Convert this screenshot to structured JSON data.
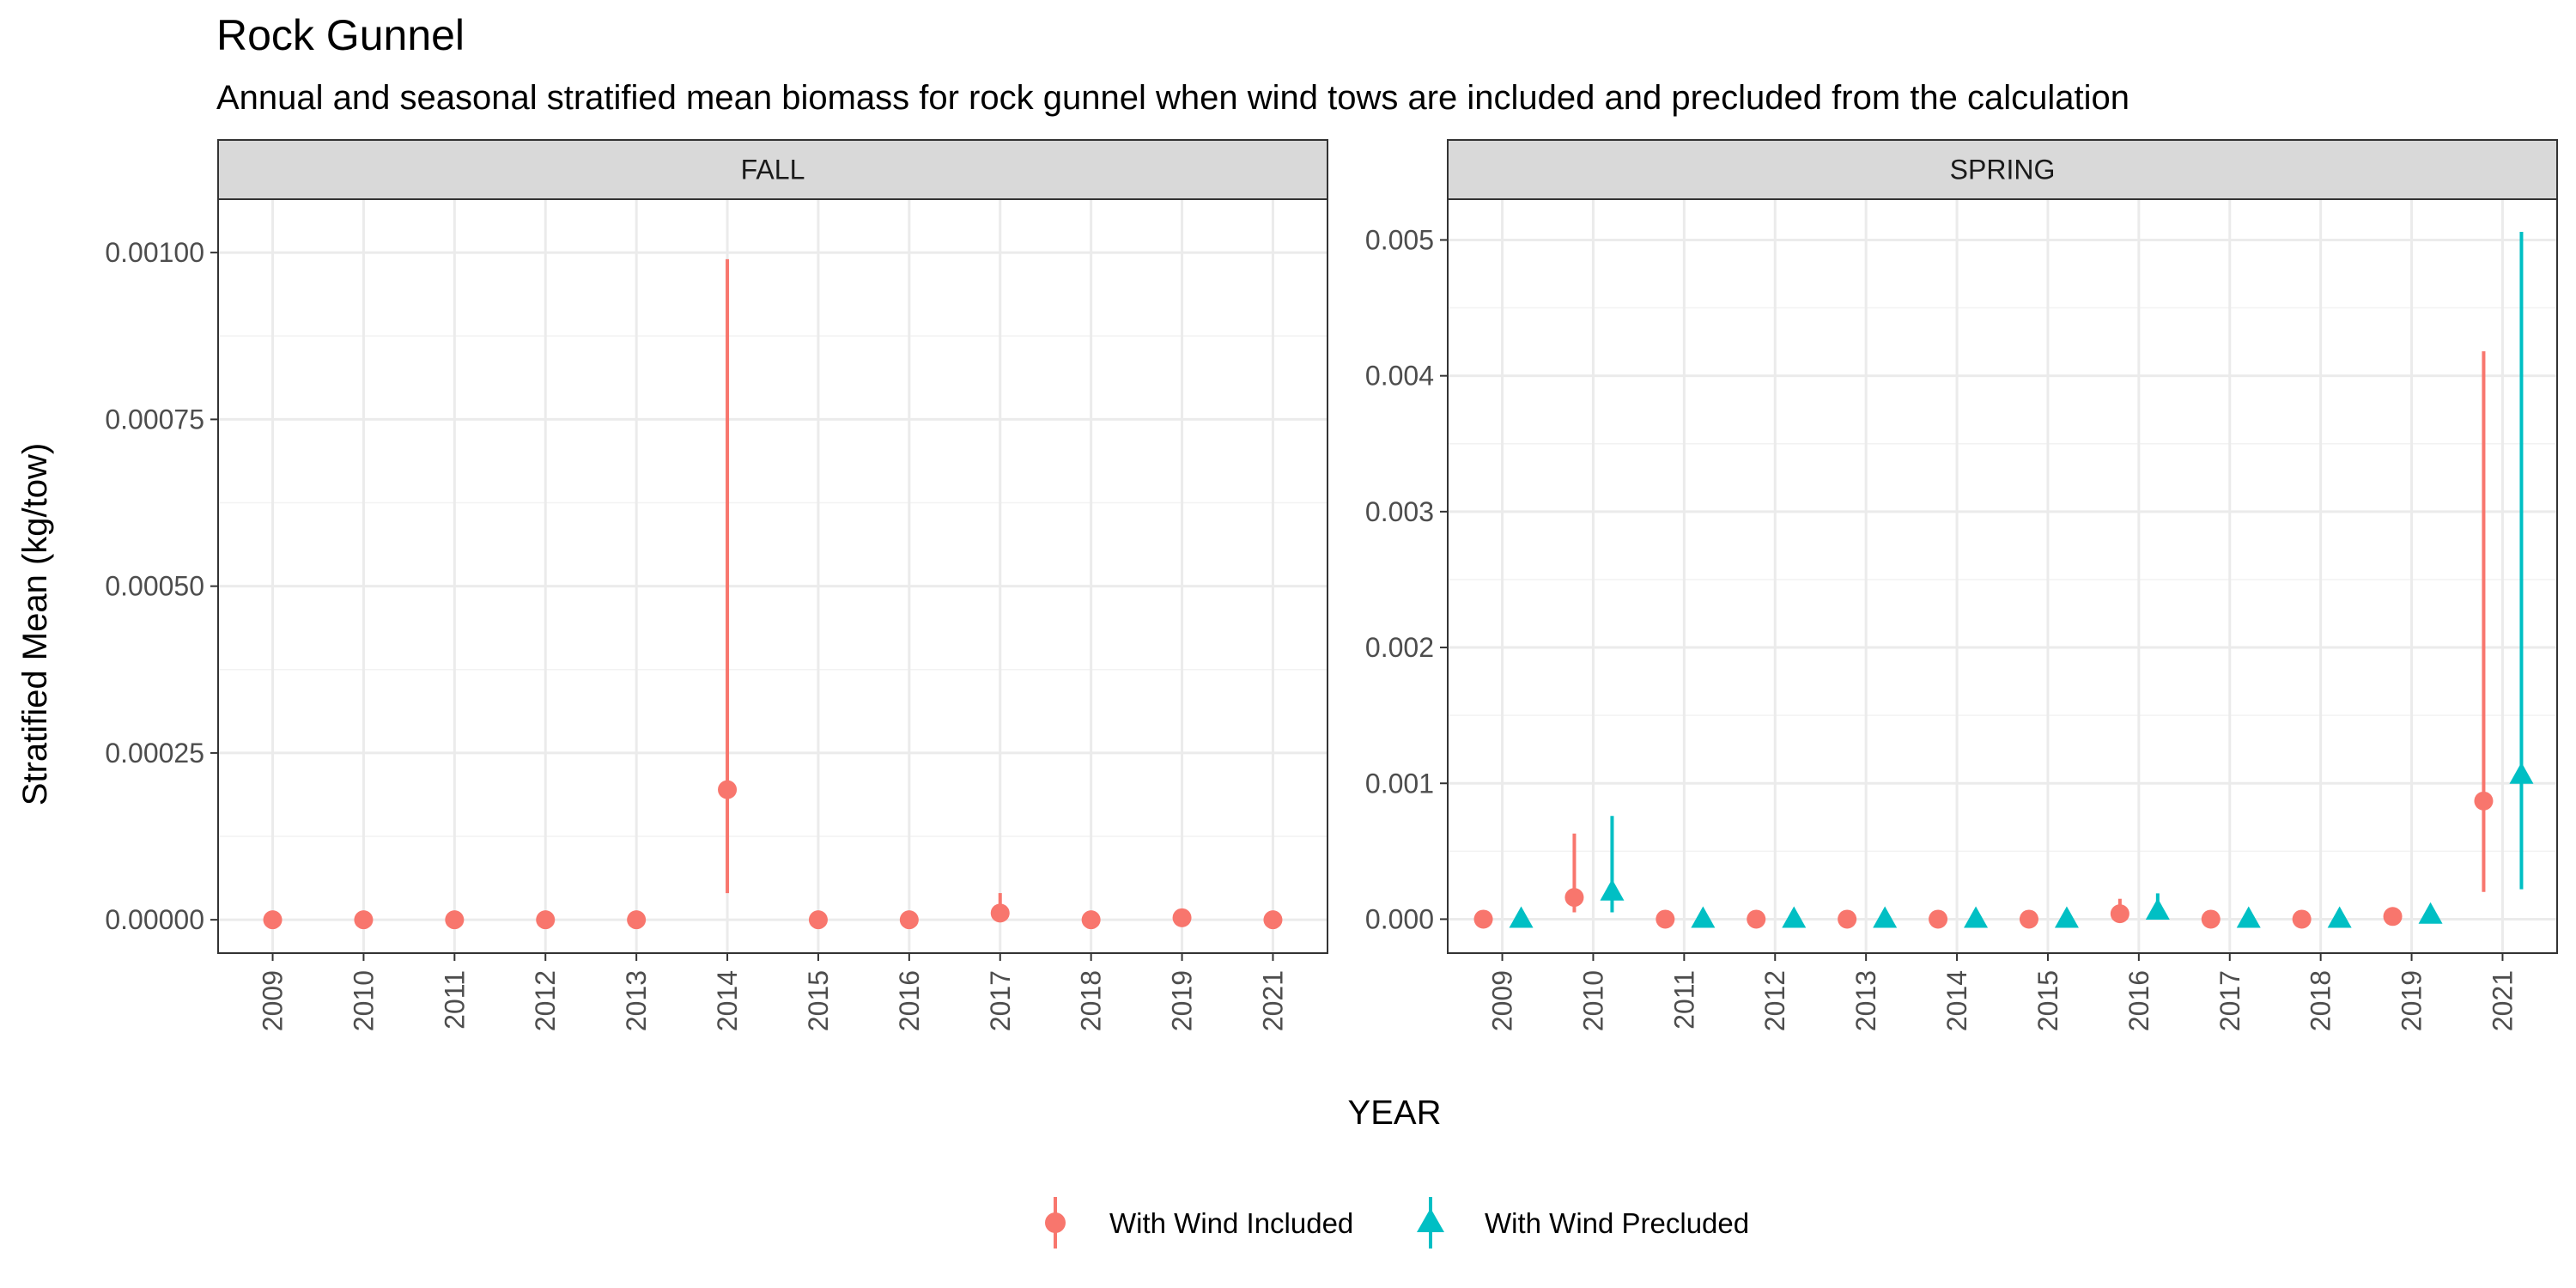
{
  "title": "Rock Gunnel",
  "subtitle": "Annual and seasonal stratified mean biomass for rock gunnel when wind tows are included and precluded from the calculation",
  "colors": {
    "included": "#F8766D",
    "precluded": "#00BFC4",
    "grid": "#EBEBEB",
    "strip_bg": "#D9D9D9",
    "panel_border": "#333333"
  },
  "legend": {
    "items": [
      {
        "label": "With Wind Included",
        "shape": "circle",
        "color": "#F8766D"
      },
      {
        "label": "With Wind Precluded",
        "shape": "triangle",
        "color": "#00BFC4"
      }
    ]
  },
  "chart_data": [
    {
      "type": "scatter",
      "panel": "FALL",
      "xlabel": "YEAR",
      "ylabel": "Stratified Mean (kg/tow)",
      "ylim": [
        -5e-05,
        0.00108
      ],
      "yticks": [
        0.0,
        0.00025,
        0.0005,
        0.00075,
        0.001
      ],
      "ytick_labels": [
        "0.00000",
        "0.00025",
        "0.00050",
        "0.00075",
        "0.00100"
      ],
      "categories": [
        "2009",
        "2010",
        "2011",
        "2012",
        "2013",
        "2014",
        "2015",
        "2016",
        "2017",
        "2018",
        "2019",
        "2021"
      ],
      "series": [
        {
          "name": "With Wind Included",
          "values": [
            0,
            0,
            0,
            0,
            0,
            0.000195,
            0,
            0,
            1e-05,
            0,
            3e-06,
            0
          ],
          "lower": [
            0,
            0,
            0,
            0,
            0,
            4e-05,
            0,
            0,
            1e-06,
            0,
            0,
            0
          ],
          "upper": [
            0,
            0,
            0,
            0,
            0,
            0.00099,
            0,
            0,
            4e-05,
            0,
            5e-06,
            0
          ]
        }
      ]
    },
    {
      "type": "scatter",
      "panel": "SPRING",
      "xlabel": "YEAR",
      "ylabel": "Stratified Mean (kg/tow)",
      "ylim": [
        -0.00025,
        0.0053
      ],
      "yticks": [
        0.0,
        0.001,
        0.002,
        0.003,
        0.004,
        0.005
      ],
      "ytick_labels": [
        "0.000",
        "0.001",
        "0.002",
        "0.003",
        "0.004",
        "0.005"
      ],
      "categories": [
        "2009",
        "2010",
        "2011",
        "2012",
        "2013",
        "2014",
        "2015",
        "2016",
        "2017",
        "2018",
        "2019",
        "2021"
      ],
      "series": [
        {
          "name": "With Wind Included",
          "values": [
            0,
            0.00016,
            0,
            0,
            0,
            0,
            0,
            4e-05,
            0,
            0,
            2e-05,
            0.00087
          ],
          "lower": [
            0,
            5e-05,
            0,
            0,
            0,
            0,
            0,
            5e-06,
            0,
            0,
            0,
            0.0002
          ],
          "upper": [
            0,
            0.00063,
            0,
            0,
            0,
            0,
            0,
            0.00015,
            0,
            0,
            4e-05,
            0.00418
          ]
        },
        {
          "name": "With Wind Precluded",
          "values": [
            0,
            0.0002,
            0,
            0,
            0,
            0,
            0,
            6e-05,
            0,
            0,
            3e-05,
            0.00106
          ],
          "lower": [
            0,
            5e-05,
            0,
            0,
            0,
            0,
            0,
            1e-05,
            0,
            0,
            0,
            0.00022
          ],
          "upper": [
            0,
            0.00076,
            0,
            0,
            0,
            0,
            0,
            0.00019,
            0,
            0,
            5e-05,
            0.00506
          ]
        }
      ]
    }
  ]
}
